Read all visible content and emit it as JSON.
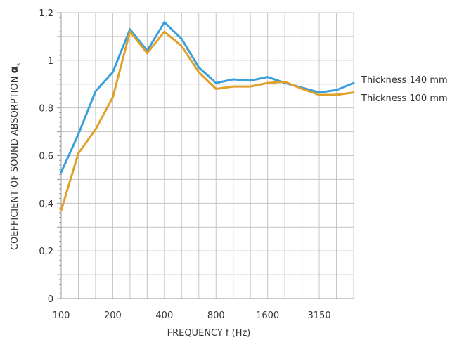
{
  "chart_data": {
    "type": "line",
    "xlabel": "FREQUENCY f (Hz)",
    "ylabel_text": "COEFFICIENT OF SOUND ABSORPTION ",
    "ylabel_symbol": "α",
    "ylabel_subscript": "s",
    "x": [
      100,
      125,
      160,
      200,
      250,
      315,
      400,
      500,
      630,
      800,
      1000,
      1250,
      1600,
      2000,
      2500,
      3150,
      4000,
      5000
    ],
    "x_tick_labels": [
      "100",
      "",
      "200",
      "",
      "400",
      "",
      "800",
      "",
      "1600",
      "",
      "3150",
      ""
    ],
    "y_tick_labels": [
      "0",
      "0,2",
      "0,4",
      "0,6",
      "0,8",
      "1",
      "1,2"
    ],
    "y_ticks": [
      0,
      0.2,
      0.4,
      0.6,
      0.8,
      1.0,
      1.2
    ],
    "ylim": [
      0,
      1.2
    ],
    "grid": true,
    "legend": "right",
    "series": [
      {
        "name": "Thickness 140 mm",
        "color": "#3aa0dc",
        "values": [
          0.53,
          0.69,
          0.87,
          0.95,
          1.13,
          1.04,
          1.16,
          1.09,
          0.97,
          0.905,
          0.92,
          0.915,
          0.93,
          0.905,
          0.885,
          0.865,
          0.875,
          0.905
        ]
      },
      {
        "name": "Thickness 100 mm",
        "color": "#e0a02a",
        "values": [
          0.37,
          0.61,
          0.71,
          0.845,
          1.12,
          1.03,
          1.12,
          1.06,
          0.95,
          0.88,
          0.89,
          0.89,
          0.905,
          0.91,
          0.88,
          0.855,
          0.855,
          0.865
        ]
      }
    ]
  }
}
